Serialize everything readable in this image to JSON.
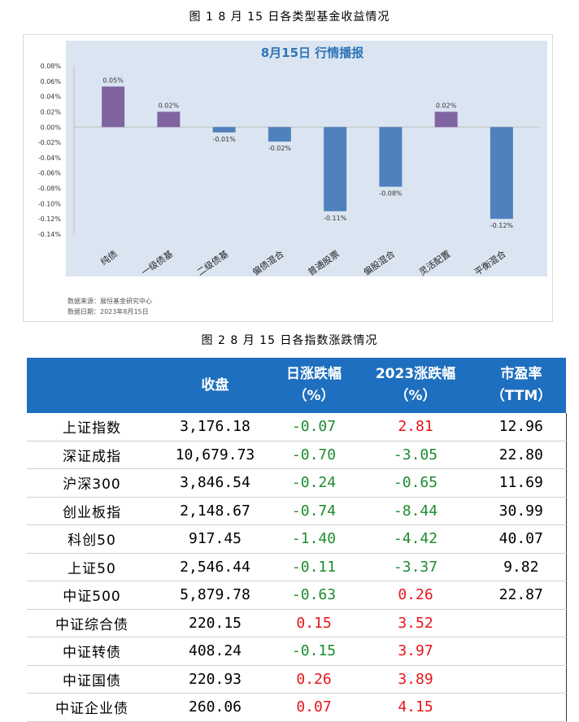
{
  "figure1": {
    "caption": "图 1   8 月 15 日各类型基金收益情况",
    "source_line1": "数据来源：展恒基金研究中心",
    "source_line2": "数据日期：2023年8月15日"
  },
  "figure2": {
    "caption": "图 2   8 月 15 日各指数涨跌情况"
  },
  "chart_data": {
    "type": "bar",
    "title": "8月15日  行情播报",
    "categories": [
      "纯债",
      "一级债基",
      "二级债基",
      "偏债混合",
      "普通股票",
      "偏股混合",
      "灵活配置",
      "平衡混合"
    ],
    "values": [
      0.053,
      0.02,
      -0.007,
      -0.019,
      -0.11,
      -0.078,
      0.02,
      -0.12
    ],
    "data_labels": [
      "0.05%",
      "0.02%",
      "-0.01%",
      "-0.02%",
      "-0.11%",
      "-0.08%",
      "0.02%",
      "-0.12%"
    ],
    "ylim": [
      -0.14,
      0.08
    ],
    "yticks": [
      "0.08%",
      "0.06%",
      "0.04%",
      "0.02%",
      "0.00%",
      "-0.02%",
      "-0.04%",
      "-0.06%",
      "-0.08%",
      "-0.10%",
      "-0.12%",
      "-0.14%"
    ],
    "positive_color": "#8064a2",
    "negative_color": "#4f81bd",
    "plot_bg": "#dbe5f1",
    "title_color": "#2e75b6",
    "grid": false
  },
  "table": {
    "headers": [
      "",
      "收盘",
      "日涨跌幅\n（%）",
      "2023涨跌幅\n（%）",
      "市盈率\n（TTM）"
    ],
    "header_bg": "#1e6fbf",
    "rows": [
      {
        "name": "上证指数",
        "close": "3,176.18",
        "day": "-0.07",
        "ytd": "2.81",
        "pe": "12.96"
      },
      {
        "name": "深证成指",
        "close": "10,679.73",
        "day": "-0.70",
        "ytd": "-3.05",
        "pe": "22.80"
      },
      {
        "name": "沪深300",
        "close": "3,846.54",
        "day": "-0.24",
        "ytd": "-0.65",
        "pe": "11.69"
      },
      {
        "name": "创业板指",
        "close": "2,148.67",
        "day": "-0.74",
        "ytd": "-8.44",
        "pe": "30.99"
      },
      {
        "name": "科创50",
        "close": "917.45",
        "day": "-1.40",
        "ytd": "-4.42",
        "pe": "40.07"
      },
      {
        "name": "上证50",
        "close": "2,546.44",
        "day": "-0.11",
        "ytd": "-3.37",
        "pe": "9.82"
      },
      {
        "name": "中证500",
        "close": "5,879.78",
        "day": "-0.63",
        "ytd": "0.26",
        "pe": "22.87"
      },
      {
        "name": "中证综合债",
        "close": "220.15",
        "day": "0.15",
        "ytd": "3.52",
        "pe": ""
      },
      {
        "name": "中证转债",
        "close": "408.24",
        "day": "-0.15",
        "ytd": "3.97",
        "pe": ""
      },
      {
        "name": "中证国债",
        "close": "220.93",
        "day": "0.26",
        "ytd": "3.89",
        "pe": ""
      },
      {
        "name": "中证企业债",
        "close": "260.06",
        "day": "0.07",
        "ytd": "4.15",
        "pe": ""
      }
    ]
  }
}
